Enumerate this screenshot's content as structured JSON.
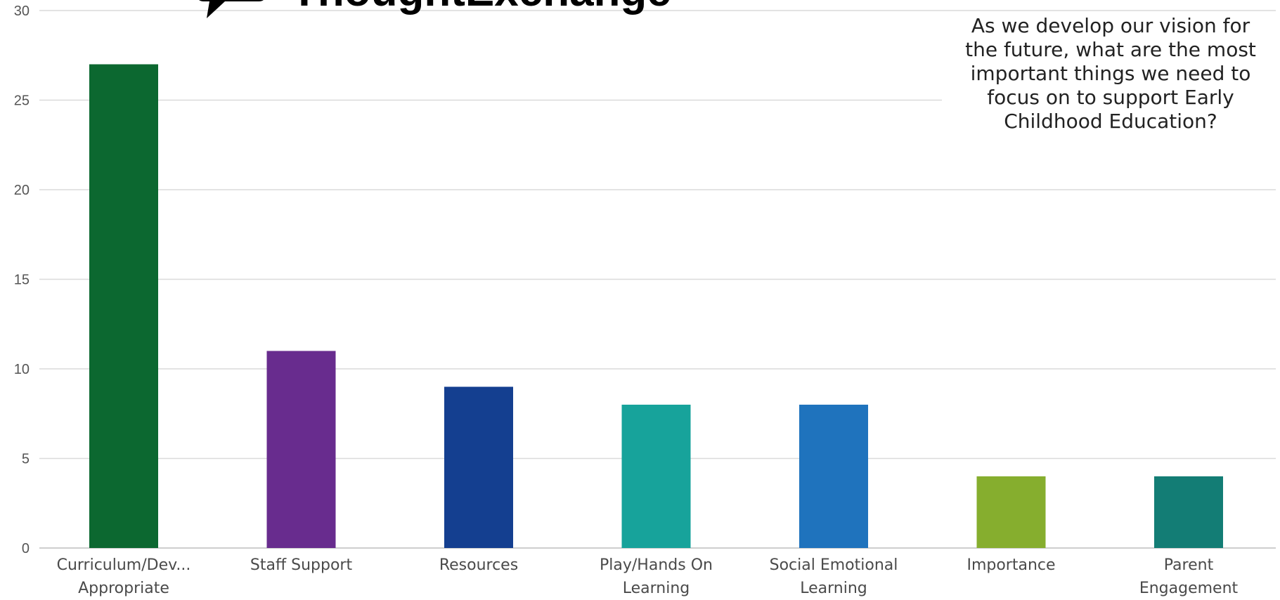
{
  "header": {
    "brand_name": "ThoughtExchange",
    "logo_icon": "speech-bubble-icon"
  },
  "question": "As we develop our vision for\nthe future, what are the most\nimportant things we need to\nfocus on to support Early\nChildhood Education?",
  "chart_data": {
    "type": "bar",
    "title": "",
    "xlabel": "",
    "ylabel": "",
    "ylim": [
      0,
      30
    ],
    "yticks": [
      0,
      5,
      10,
      15,
      20,
      25,
      30
    ],
    "grid": true,
    "legend": "none",
    "categories": [
      [
        "Curriculum/Dev...",
        "Appropriate"
      ],
      [
        "Staff Support"
      ],
      [
        "Resources"
      ],
      [
        "Play/Hands On",
        "Learning"
      ],
      [
        "Social Emotional",
        "Learning"
      ],
      [
        "Importance"
      ],
      [
        "Parent",
        "Engagement"
      ]
    ],
    "values": [
      27,
      11,
      9,
      8,
      8,
      4,
      4
    ],
    "colors": [
      "#0c6830",
      "#682c8e",
      "#143f90",
      "#17a39b",
      "#1f73bd",
      "#86ae2e",
      "#137d75"
    ]
  }
}
